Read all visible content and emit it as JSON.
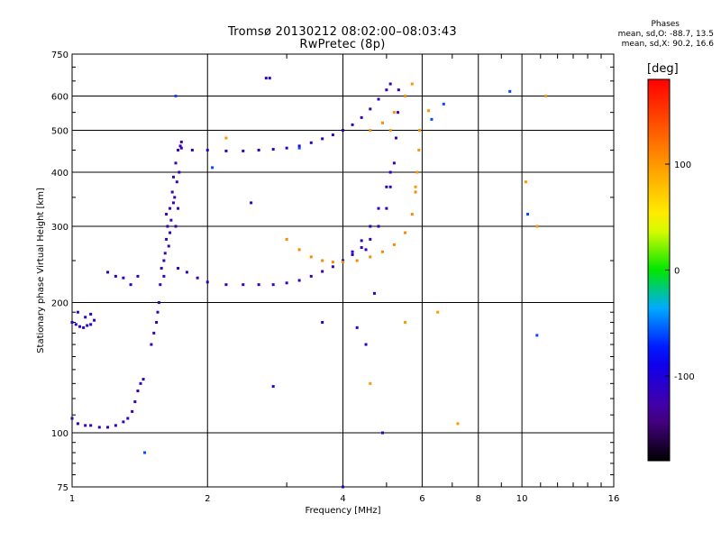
{
  "title": {
    "line1": "Tromsø 20130212 08:02:00–08:03:43",
    "line2": "RwPretec (8p)"
  },
  "stats": {
    "heading": "Phases",
    "line_o": "mean, sd,O: -88.7, 13.5",
    "line_x": "mean, sd,X:  90.2, 16.6"
  },
  "chart_data": {
    "type": "scatter",
    "xlabel": "Frequency [MHz]",
    "ylabel": "Stationary phase Virtual Height [km]",
    "xscale": "log",
    "yscale": "log",
    "xlim": [
      1,
      16
    ],
    "ylim": [
      75,
      750
    ],
    "xticks": [
      1,
      2,
      4,
      6,
      8,
      10,
      16
    ],
    "yticks": [
      75,
      100,
      200,
      300,
      400,
      500,
      600,
      750
    ],
    "grid": true,
    "colorbar": {
      "label": "[deg]",
      "range": [
        -180,
        180
      ],
      "ticks": [
        100,
        0,
        -100
      ]
    },
    "series": [
      {
        "trace": "o_low_e",
        "phase": -115,
        "points": [
          [
            1.0,
            108
          ],
          [
            1.03,
            105
          ],
          [
            1.07,
            104
          ],
          [
            1.1,
            104
          ],
          [
            1.15,
            103
          ],
          [
            1.2,
            103
          ],
          [
            1.25,
            104
          ],
          [
            1.3,
            106
          ],
          [
            1.33,
            108
          ],
          [
            1.36,
            112
          ],
          [
            1.38,
            118
          ],
          [
            1.4,
            125
          ],
          [
            1.42,
            130
          ],
          [
            1.44,
            133
          ]
        ]
      },
      {
        "trace": "o_low_cluster",
        "phase": -110,
        "points": [
          [
            1.0,
            180
          ],
          [
            1.02,
            178
          ],
          [
            1.04,
            176
          ],
          [
            1.06,
            175
          ],
          [
            1.08,
            177
          ],
          [
            1.1,
            178
          ],
          [
            1.12,
            182
          ],
          [
            1.03,
            190
          ],
          [
            1.07,
            185
          ],
          [
            1.1,
            188
          ]
        ]
      },
      {
        "trace": "o_f1_band",
        "phase": -120,
        "points": [
          [
            1.5,
            160
          ],
          [
            1.52,
            170
          ],
          [
            1.55,
            190
          ],
          [
            1.57,
            220
          ],
          [
            1.6,
            250
          ],
          [
            1.62,
            280
          ],
          [
            1.63,
            300
          ],
          [
            1.65,
            330
          ],
          [
            1.67,
            360
          ],
          [
            1.68,
            390
          ],
          [
            1.7,
            420
          ],
          [
            1.72,
            450
          ],
          [
            1.74,
            460
          ],
          [
            1.75,
            470
          ],
          [
            1.58,
            240
          ],
          [
            1.6,
            230
          ],
          [
            1.64,
            270
          ],
          [
            1.66,
            310
          ],
          [
            1.69,
            350
          ],
          [
            1.71,
            380
          ],
          [
            1.73,
            400
          ],
          [
            1.56,
            200
          ],
          [
            1.54,
            180
          ],
          [
            1.61,
            260
          ],
          [
            1.62,
            320
          ],
          [
            1.65,
            290
          ],
          [
            1.68,
            340
          ],
          [
            1.7,
            300
          ],
          [
            1.72,
            330
          ]
        ]
      },
      {
        "trace": "o_f_lower",
        "phase": -118,
        "points": [
          [
            1.72,
            240
          ],
          [
            1.8,
            235
          ],
          [
            1.9,
            228
          ],
          [
            2.0,
            223
          ],
          [
            2.2,
            220
          ],
          [
            2.4,
            220
          ],
          [
            2.6,
            220
          ],
          [
            2.8,
            220
          ],
          [
            3.0,
            222
          ],
          [
            3.2,
            225
          ],
          [
            3.4,
            230
          ],
          [
            3.6,
            236
          ],
          [
            3.8,
            242
          ],
          [
            4.0,
            250
          ],
          [
            4.2,
            258
          ],
          [
            4.4,
            268
          ],
          [
            4.6,
            280
          ],
          [
            4.8,
            300
          ],
          [
            5.0,
            330
          ],
          [
            5.1,
            370
          ],
          [
            5.2,
            420
          ],
          [
            5.25,
            480
          ],
          [
            5.3,
            550
          ],
          [
            5.32,
            620
          ]
        ]
      },
      {
        "trace": "o_f_upper",
        "phase": -115,
        "points": [
          [
            1.75,
            455
          ],
          [
            1.85,
            450
          ],
          [
            2.0,
            450
          ],
          [
            2.2,
            448
          ],
          [
            2.4,
            448
          ],
          [
            2.6,
            450
          ],
          [
            2.8,
            452
          ],
          [
            3.0,
            455
          ],
          [
            3.2,
            460
          ],
          [
            3.4,
            468
          ],
          [
            3.6,
            478
          ],
          [
            3.8,
            488
          ],
          [
            4.0,
            500
          ],
          [
            4.2,
            515
          ],
          [
            4.4,
            535
          ],
          [
            4.6,
            560
          ],
          [
            4.8,
            590
          ],
          [
            5.0,
            620
          ],
          [
            5.1,
            640
          ]
        ]
      },
      {
        "trace": "o_f_mid",
        "phase": -110,
        "points": [
          [
            4.0,
            250
          ],
          [
            4.2,
            262
          ],
          [
            4.4,
            278
          ],
          [
            4.6,
            300
          ],
          [
            4.8,
            330
          ],
          [
            5.0,
            370
          ],
          [
            5.1,
            400
          ]
        ]
      },
      {
        "trace": "x_f_lower",
        "phase": 110,
        "points": [
          [
            3.0,
            280
          ],
          [
            3.2,
            265
          ],
          [
            3.4,
            255
          ],
          [
            3.6,
            250
          ],
          [
            3.8,
            248
          ],
          [
            4.0,
            248
          ],
          [
            4.3,
            250
          ],
          [
            4.6,
            255
          ],
          [
            4.9,
            262
          ],
          [
            5.2,
            272
          ],
          [
            5.5,
            290
          ],
          [
            5.7,
            320
          ],
          [
            5.8,
            360
          ]
        ]
      },
      {
        "trace": "x_f_upper",
        "phase": 105,
        "points": [
          [
            4.6,
            500
          ],
          [
            4.9,
            520
          ],
          [
            5.2,
            550
          ],
          [
            5.5,
            600
          ],
          [
            5.7,
            640
          ]
        ]
      },
      {
        "trace": "x_f_tail",
        "phase": 100,
        "points": [
          [
            5.8,
            370
          ],
          [
            5.85,
            400
          ],
          [
            5.9,
            450
          ],
          [
            5.92,
            500
          ]
        ]
      },
      {
        "trace": "scatter_o",
        "phase": -112,
        "points": [
          [
            1.2,
            235
          ],
          [
            1.25,
            230
          ],
          [
            1.3,
            228
          ],
          [
            1.35,
            220
          ],
          [
            1.4,
            230
          ],
          [
            2.7,
            660
          ],
          [
            2.75,
            660
          ],
          [
            2.5,
            340
          ],
          [
            4.5,
            265
          ],
          [
            4.7,
            210
          ],
          [
            4.3,
            175
          ],
          [
            4.5,
            160
          ],
          [
            4.9,
            100
          ],
          [
            3.6,
            180
          ],
          [
            4.0,
            75
          ],
          [
            2.8,
            128
          ]
        ]
      },
      {
        "trace": "scatter_x",
        "phase": 100,
        "points": [
          [
            2.2,
            480
          ],
          [
            4.6,
            130
          ],
          [
            5.5,
            180
          ],
          [
            6.5,
            190
          ],
          [
            7.2,
            105
          ],
          [
            10.2,
            380
          ],
          [
            10.8,
            300
          ],
          [
            11.3,
            600
          ],
          [
            6.2,
            555
          ],
          [
            5.1,
            500
          ]
        ]
      },
      {
        "trace": "scatter_misc",
        "phase": -60,
        "points": [
          [
            1.45,
            90
          ],
          [
            1.7,
            600
          ],
          [
            3.2,
            455
          ],
          [
            6.7,
            575
          ],
          [
            9.4,
            615
          ],
          [
            10.3,
            320
          ],
          [
            10.8,
            168
          ],
          [
            6.3,
            530
          ],
          [
            2.05,
            410
          ]
        ]
      }
    ]
  }
}
